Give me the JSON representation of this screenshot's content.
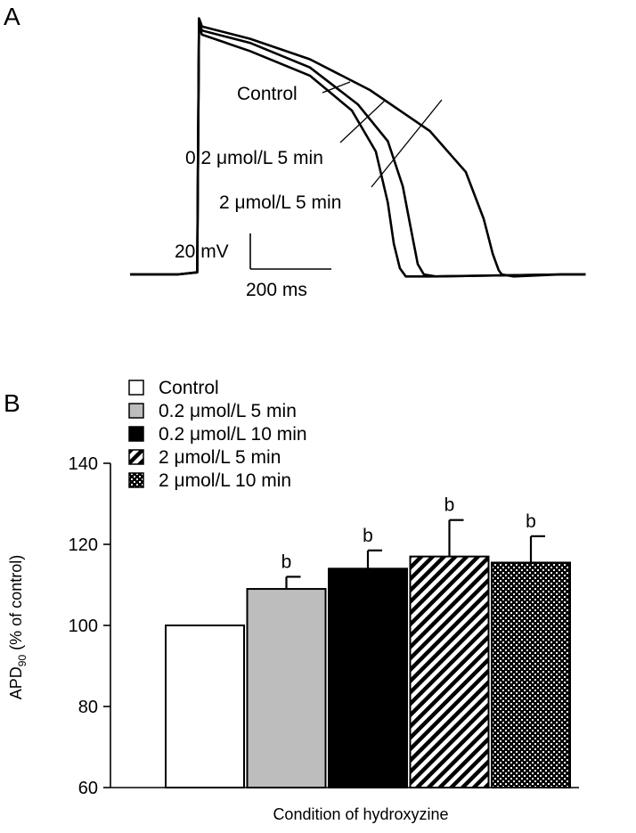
{
  "panel_a": {
    "letter": "A",
    "trace_labels": [
      "Control",
      "0.2 μmol/L 5 min",
      "2 μmol/L 5 min"
    ],
    "scale_bar": {
      "voltage_label": "20 mV",
      "time_label": "200 ms"
    }
  },
  "panel_b": {
    "letter": "B",
    "legend_position": "top-left",
    "colors": {
      "control": "#ffffff",
      "gray": "#bdbdbd",
      "black": "#000000",
      "edge": "#000000"
    }
  },
  "chart_data": [
    {
      "type": "line",
      "panel": "A",
      "xlabel": "",
      "ylabel": "",
      "scale_bar": {
        "time_ms": 200,
        "voltage_mV": 20
      },
      "series": [
        {
          "name": "Control",
          "x_ms": [
            0,
            80,
            112,
            115,
            120,
            200,
            300,
            400,
            500,
            560,
            590,
            605,
            615,
            620,
            640,
            720,
            760
          ],
          "y_mV": [
            -85,
            -85,
            -84,
            40,
            36,
            30,
            20,
            5,
            -15,
            -35,
            -58,
            -75,
            -83,
            -85,
            -86,
            -85,
            -85
          ]
        },
        {
          "name": "0.2 μmol/L 5 min",
          "x_ms": [
            0,
            80,
            112,
            115,
            120,
            200,
            300,
            380,
            430,
            455,
            470,
            480,
            490,
            510,
            720,
            760
          ],
          "y_mV": [
            -85,
            -85,
            -84,
            38,
            34,
            28,
            16,
            -2,
            -20,
            -42,
            -65,
            -80,
            -85,
            -86,
            -85,
            -85
          ]
        },
        {
          "name": "2 μmol/L 5 min",
          "x_ms": [
            0,
            80,
            112,
            115,
            120,
            200,
            300,
            370,
            410,
            430,
            440,
            450,
            460,
            500,
            720,
            760
          ],
          "y_mV": [
            -85,
            -85,
            -84,
            36,
            32,
            24,
            12,
            -5,
            -25,
            -50,
            -70,
            -82,
            -86,
            -86,
            -85,
            -85
          ]
        }
      ]
    },
    {
      "type": "bar",
      "panel": "B",
      "title": "",
      "xlabel": "Condition of hydroxyzine",
      "ylabel": "APD90 (% of control)",
      "ylabel_main": "APD",
      "ylabel_sub": "90",
      "ylabel_rest": " (% of control)",
      "ylim": [
        60,
        140
      ],
      "yticks": [
        60,
        80,
        100,
        120,
        140
      ],
      "grid": false,
      "categories": [
        "Control",
        "0.2 μmol/L 5 min",
        "0.2 μmol/L 10 min",
        "2 μmol/L 5 min",
        "2 μmol/L 10 min"
      ],
      "values": [
        100,
        109,
        114,
        117,
        115.5
      ],
      "errors": [
        0,
        3,
        4.5,
        9,
        6.5
      ],
      "annotations": [
        "",
        "b",
        "b",
        "b",
        "b"
      ],
      "fills": [
        "white",
        "gray",
        "black",
        "diagonal-hatch",
        "crosshatch"
      ]
    }
  ]
}
